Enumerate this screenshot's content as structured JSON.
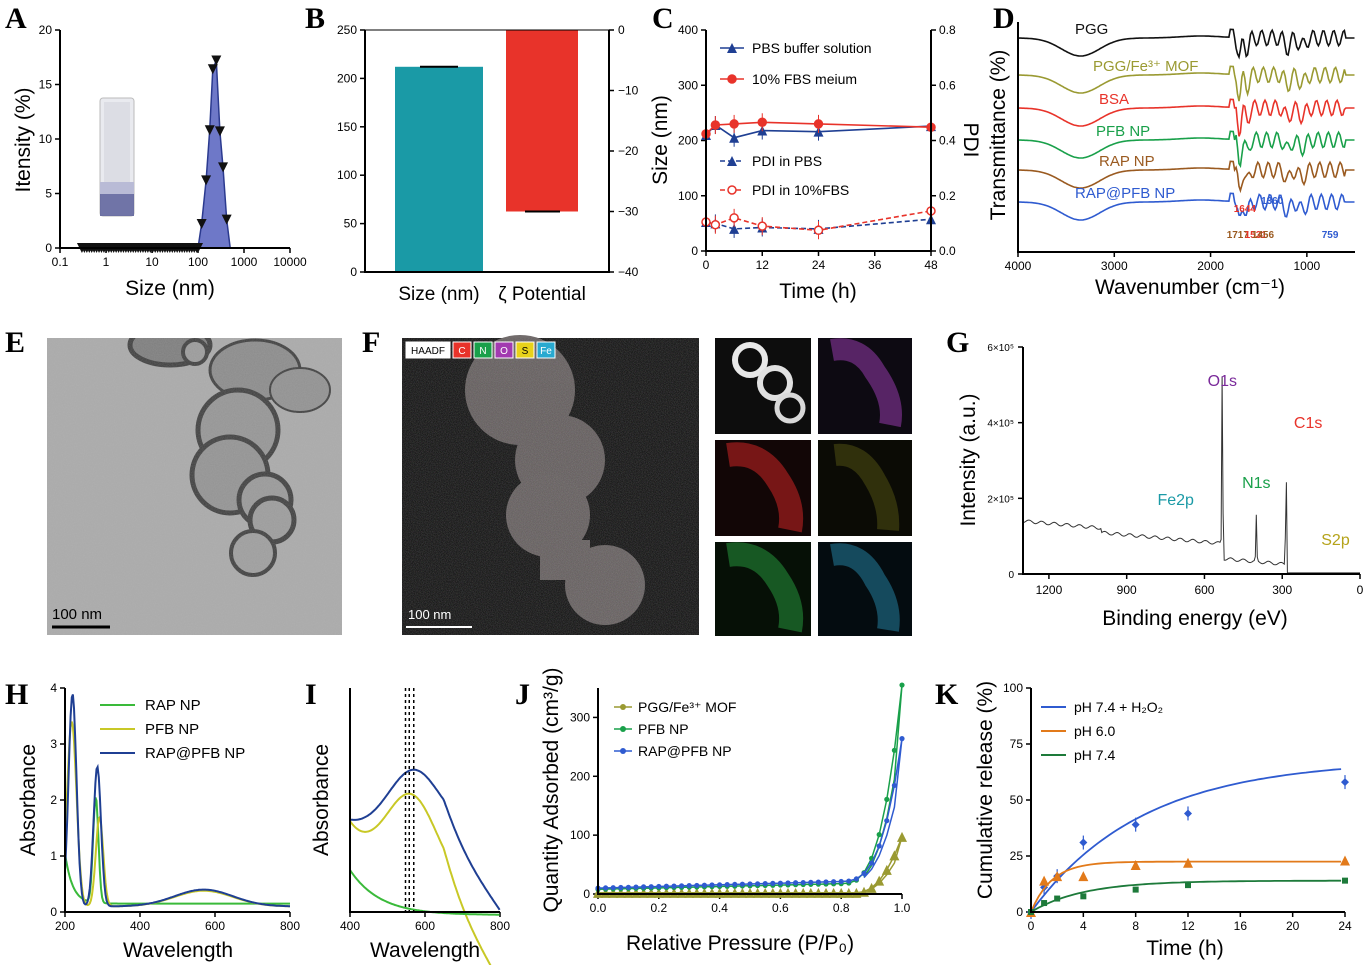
{
  "colors": {
    "navy": "#1f3f93",
    "red": "#e8332a",
    "teal": "#1a9aa6",
    "olive": "#9a9a32",
    "green": "#19a04a",
    "brown": "#9a5a20",
    "blue": "#2f5bd0",
    "black": "#111",
    "orange": "#e27a1a",
    "dgreen": "#1d7a3a",
    "yellow": "#c8c826",
    "pgreen": "#3aba3a",
    "gray": "#555"
  },
  "panel_labels": {
    "A": "A",
    "B": "B",
    "C": "C",
    "D": "D",
    "E": "E",
    "F": "F",
    "G": "G",
    "H": "H",
    "I": "I",
    "J": "J",
    "K": "K"
  },
  "chart_data": [
    {
      "id": "A",
      "type": "area",
      "ylabel": "Itensity (%)",
      "xlabel": "Size (nm)",
      "xscale": "log",
      "xlim": [
        0.1,
        10000
      ],
      "ylim": [
        0,
        20
      ],
      "xticks": [
        "0.1",
        "1",
        "10",
        "100",
        "1000",
        "10000"
      ],
      "yticks": [
        "0",
        "5",
        "10",
        "15",
        "20"
      ],
      "x": [
        0.3,
        100,
        120,
        150,
        180,
        210,
        250,
        300,
        350,
        420,
        500
      ],
      "y": [
        0,
        0,
        2.2,
        6.2,
        10.8,
        16.4,
        17.2,
        10.7,
        7.4,
        2.6,
        0
      ]
    },
    {
      "id": "B",
      "type": "bar",
      "categories": [
        "Size (nm)",
        "ζ Potential"
      ],
      "ylim_left": [
        0,
        250
      ],
      "ylim_right": [
        -40,
        0
      ],
      "yticks_left": [
        "0",
        "50",
        "100",
        "150",
        "200",
        "250"
      ],
      "yticks_right": [
        "0",
        "−10",
        "−20",
        "−30",
        "−40"
      ],
      "series": [
        {
          "values": [
            212,
            -30
          ]
        }
      ]
    },
    {
      "id": "C",
      "type": "line",
      "xlabel": "Time (h)",
      "ylabel": "Size (nm)",
      "ylabel_right": "PDI",
      "xlim": [
        0,
        48
      ],
      "ylim": [
        0,
        400
      ],
      "ylim_right": [
        0,
        0.8
      ],
      "xticks": [
        "0",
        "12",
        "24",
        "36",
        "48"
      ],
      "yticks": [
        "0",
        "100",
        "200",
        "300",
        "400"
      ],
      "yticks_right": [
        "0.0",
        "0.2",
        "0.4",
        "0.6",
        "0.8"
      ],
      "legend": [
        "PBS buffer solution",
        "10% FBS meium",
        "PDI in PBS",
        "PDI in 10%FBS"
      ],
      "series": [
        {
          "name": "PBS buffer solution",
          "x": [
            0,
            2,
            6,
            12,
            24,
            48
          ],
          "y": [
            210,
            228,
            205,
            218,
            216,
            226
          ]
        },
        {
          "name": "10% FBS meium",
          "x": [
            0,
            2,
            6,
            12,
            24,
            48
          ],
          "y": [
            212,
            228,
            230,
            233,
            230,
            224
          ]
        },
        {
          "name": "PDI in PBS",
          "axis": "right",
          "x": [
            0,
            2,
            6,
            12,
            24,
            48
          ],
          "y": [
            0.105,
            0.1,
            0.08,
            0.085,
            0.08,
            0.115
          ]
        },
        {
          "name": "PDI in 10%FBS",
          "axis": "right",
          "x": [
            0,
            2,
            6,
            12,
            24,
            48
          ],
          "y": [
            0.105,
            0.095,
            0.12,
            0.09,
            0.075,
            0.145
          ]
        }
      ]
    },
    {
      "id": "D",
      "type": "line",
      "xlabel": "Wavenumber (cm⁻¹)",
      "ylabel": "Transmittance (%)",
      "xlim": [
        4000,
        500
      ],
      "xticks": [
        "4000",
        "3000",
        "2000",
        "1000"
      ],
      "legend": [
        "PGG",
        "PGG/Fe³⁺ MOF",
        "BSA",
        "PFB NP",
        "RAP NP",
        "RAP@PFB NP"
      ],
      "annotations": [
        "1644",
        "1360",
        "1717",
        "1531",
        "1456",
        "759"
      ]
    },
    {
      "id": "G",
      "type": "line",
      "xlabel": "Binding energy (eV)",
      "ylabel": "Intensity (a.u.)",
      "xlim": [
        1300,
        0
      ],
      "xticks": [
        "1200",
        "900",
        "600",
        "300",
        "0"
      ],
      "yticks": [
        "0",
        "2×10⁵",
        "4×10⁵",
        "6×10⁵"
      ],
      "annotations": [
        "O1s",
        "C1s",
        "N1s",
        "Fe2p",
        "S2p"
      ]
    },
    {
      "id": "H",
      "type": "line",
      "xlabel": "Wavelength",
      "ylabel": "Absorbance",
      "xlim": [
        200,
        800
      ],
      "ylim": [
        0,
        4
      ],
      "xticks": [
        "200",
        "400",
        "600",
        "800"
      ],
      "yticks": [
        "0",
        "1",
        "2",
        "3",
        "4"
      ],
      "legend": [
        "RAP NP",
        "PFB NP",
        "RAP@PFB NP"
      ]
    },
    {
      "id": "I",
      "type": "line",
      "xlabel": "Wavelength",
      "ylabel": "Absorbance",
      "xlim": [
        400,
        800
      ],
      "xticks": [
        "400",
        "600",
        "800"
      ]
    },
    {
      "id": "J",
      "type": "line",
      "xlabel": "Relative Pressure (P/P₀)",
      "ylabel": "Quantity Adsorbed (cm³/g)",
      "xlim": [
        0,
        1
      ],
      "ylim": [
        0,
        350
      ],
      "xticks": [
        "0.0",
        "0.2",
        "0.4",
        "0.6",
        "0.8",
        "1.0"
      ],
      "yticks": [
        "0",
        "100",
        "200",
        "300"
      ],
      "legend": [
        "PGG/Fe³⁺ MOF",
        "PFB NP",
        "RAP@PFB NP"
      ]
    },
    {
      "id": "K",
      "type": "line",
      "xlabel": "Time (h)",
      "ylabel": "Cumulative release (%)",
      "xlim": [
        0,
        24
      ],
      "ylim": [
        0,
        100
      ],
      "xticks": [
        "0",
        "4",
        "8",
        "12",
        "16",
        "20",
        "24"
      ],
      "yticks": [
        "0",
        "25",
        "50",
        "75",
        "100"
      ],
      "legend": [
        "pH 7.4 + H₂O₂",
        "pH 6.0",
        "pH 7.4"
      ],
      "series": [
        {
          "name": "pH 7.4 + H₂O₂",
          "x": [
            0,
            1,
            2,
            4,
            8,
            12,
            24
          ],
          "y": [
            0,
            11,
            16,
            31,
            39,
            44,
            58
          ]
        },
        {
          "name": "pH 6.0",
          "x": [
            0,
            1,
            2,
            4,
            8,
            12,
            24
          ],
          "y": [
            0,
            14,
            16,
            16,
            21,
            22,
            23
          ]
        },
        {
          "name": "pH 7.4",
          "x": [
            0,
            1,
            2,
            4,
            8,
            12,
            24
          ],
          "y": [
            0,
            4,
            6,
            7,
            10,
            12,
            14
          ]
        }
      ]
    }
  ],
  "images": {
    "E_scale": "100 nm",
    "F_scale": "100 nm",
    "F_legend": [
      "HAADF",
      "C",
      "N",
      "O",
      "S",
      "Fe"
    ]
  }
}
